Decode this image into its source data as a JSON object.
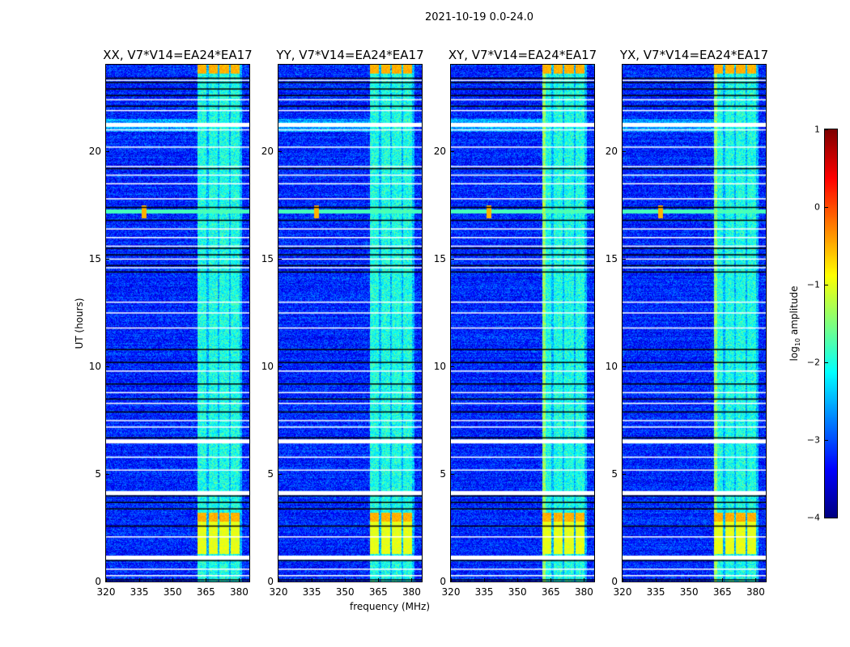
{
  "suptitle": "2021-10-19 0.0-24.0",
  "chart_data": {
    "type": "heatmap",
    "title": "2021-10-19 0.0-24.0",
    "xlabel": "frequency (MHz)",
    "ylabel": "UT (hours)",
    "xlim": [
      320,
      384.6
    ],
    "ylim": [
      0,
      24
    ],
    "xticks": [
      320,
      335,
      350,
      365,
      380
    ],
    "yticks": [
      0,
      5,
      10,
      15,
      20
    ],
    "panels": [
      {
        "title": "XX, V7*V14=EA24*EA17",
        "pol": "XX"
      },
      {
        "title": "YY, V7*V14=EA24*EA17",
        "pol": "YY"
      },
      {
        "title": "XY, V7*V14=EA24*EA17",
        "pol": "XY"
      },
      {
        "title": "YX, V7*V14=EA24*EA17",
        "pol": "YX"
      }
    ],
    "background_log_amplitude": -3.2,
    "band_mhz": [
      361,
      381
    ],
    "band_log_amplitude": -2.0,
    "bright_band_hours": [
      [
        1.3,
        3.2
      ],
      [
        23.6,
        24
      ]
    ],
    "rfi": {
      "freq_mhz": 337,
      "hours": [
        16.9,
        17.5
      ]
    },
    "flagged_white_hours": [
      0.3,
      0.6,
      1.2,
      2.1,
      4.2,
      5.2,
      5.8,
      6.6,
      7.2,
      7.5,
      8.3,
      8.8,
      9.8,
      11.8,
      12.5,
      13.0,
      14.6,
      15.0,
      15.6,
      16.0,
      16.4,
      17.8,
      18.5,
      18.9,
      19.3,
      20.2,
      21.0,
      21.3,
      21.9,
      22.4,
      23.3
    ],
    "black_rows_hours": [
      0.1,
      1.0,
      2.6,
      3.4,
      3.7,
      4.0,
      6.7,
      7.9,
      8.5,
      9.2,
      10.2,
      10.8,
      14.4,
      14.7,
      15.2,
      15.5,
      16.8,
      17.4,
      19.2,
      22.1,
      22.6,
      22.9,
      23.2,
      23.4
    ],
    "colorbar": {
      "label": "log₁₀ amplitude",
      "label_main": "log",
      "label_sub": "10",
      "label_rest": " amplitude",
      "ticks": [
        1,
        0,
        -1,
        -2,
        -3,
        -4
      ],
      "tick_labels": [
        "1",
        "0",
        "−1",
        "−2",
        "−3",
        "−4"
      ],
      "range": [
        -4,
        1
      ],
      "colormap": "jet"
    }
  }
}
